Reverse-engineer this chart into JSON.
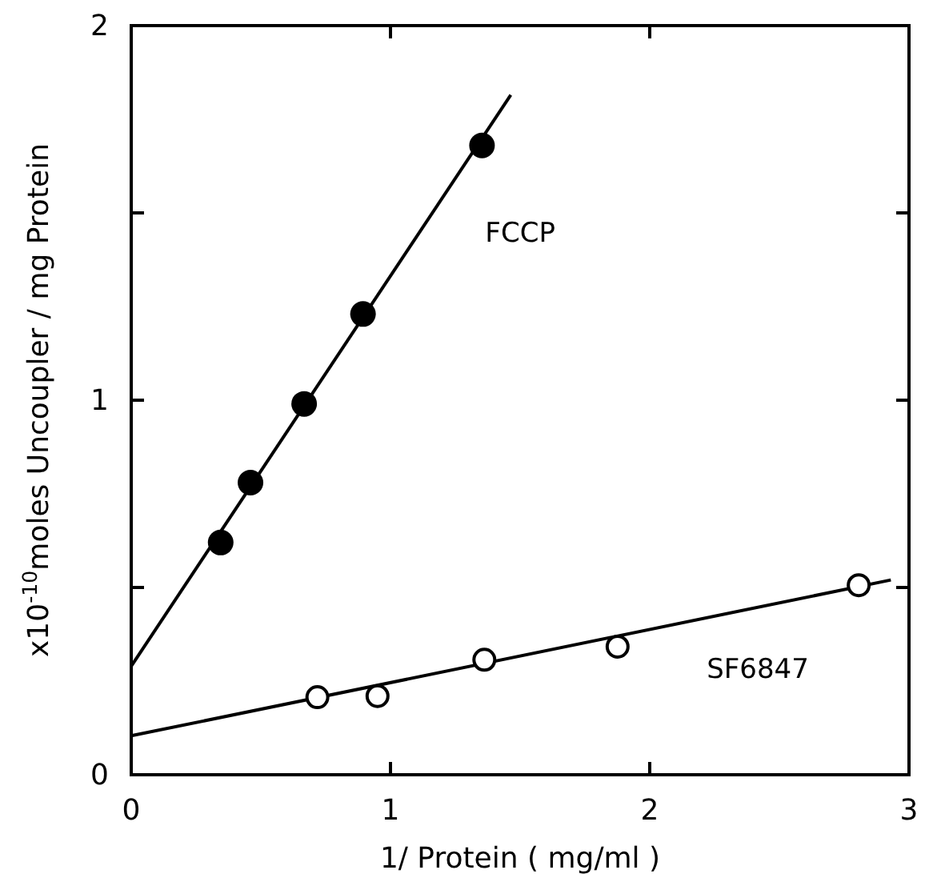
{
  "chart_data": {
    "type": "scatter",
    "xlabel": "1/ Protein ( mg/ml )",
    "ylabel": "x10$^{-10}$moles Uncoupler / mg Protein",
    "xlim": [
      0,
      3
    ],
    "ylim": [
      0,
      2
    ],
    "xticks": [
      0,
      1,
      2,
      3
    ],
    "yticks": [
      0,
      {
        "value": 0.5,
        "label": null
      },
      1,
      {
        "value": 1.5,
        "label": null
      },
      2
    ],
    "grid": false,
    "series": [
      {
        "name": "FCCP",
        "color": "#000000",
        "marker": "circle",
        "x": [
          0.345,
          0.46,
          0.667,
          0.894,
          1.353
        ],
        "values": [
          0.62,
          0.78,
          0.99,
          1.23,
          1.68
        ]
      },
      {
        "name": "SF6847",
        "color": "#000000",
        "marker": "circle-open",
        "x": [
          0.718,
          0.95,
          1.362,
          1.876,
          2.806
        ],
        "values": [
          0.207,
          0.21,
          0.307,
          0.342,
          0.506
        ]
      },
      {
        "type": "line",
        "color": "#000000",
        "x": [
          0,
          1.464
        ],
        "values": [
          0.29,
          1.815
        ]
      },
      {
        "type": "line",
        "color": "#000000",
        "x": [
          0,
          2.93
        ],
        "values": [
          0.104,
          0.52
        ]
      }
    ]
  }
}
